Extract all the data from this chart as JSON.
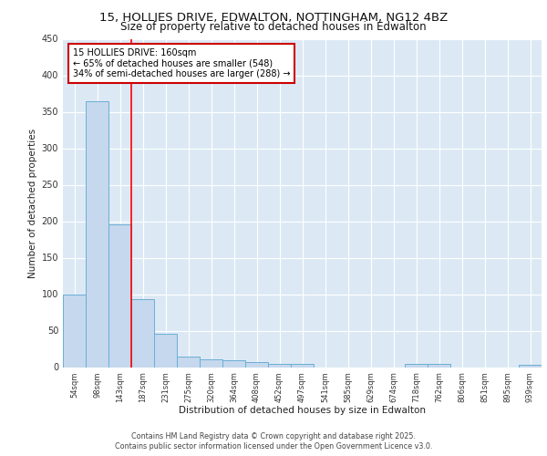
{
  "title1": "15, HOLLIES DRIVE, EDWALTON, NOTTINGHAM, NG12 4BZ",
  "title2": "Size of property relative to detached houses in Edwalton",
  "xlabel": "Distribution of detached houses by size in Edwalton",
  "ylabel": "Number of detached properties",
  "categories": [
    "54sqm",
    "98sqm",
    "143sqm",
    "187sqm",
    "231sqm",
    "275sqm",
    "320sqm",
    "364sqm",
    "408sqm",
    "452sqm",
    "497sqm",
    "541sqm",
    "585sqm",
    "629sqm",
    "674sqm",
    "718sqm",
    "762sqm",
    "806sqm",
    "851sqm",
    "895sqm",
    "939sqm"
  ],
  "values": [
    99,
    365,
    196,
    93,
    46,
    15,
    11,
    10,
    7,
    5,
    5,
    0,
    0,
    0,
    0,
    5,
    4,
    0,
    0,
    0,
    3
  ],
  "bar_color": "#c5d8ed",
  "bar_edge_color": "#6baed6",
  "red_line_x": 2.5,
  "annotation_text": "15 HOLLIES DRIVE: 160sqm\n← 65% of detached houses are smaller (548)\n34% of semi-detached houses are larger (288) →",
  "annotation_box_color": "#ffffff",
  "annotation_box_edge": "#cc0000",
  "plot_bg_color": "#dce9f5",
  "fig_bg_color": "#ffffff",
  "grid_color": "#ffffff",
  "footer1": "Contains HM Land Registry data © Crown copyright and database right 2025.",
  "footer2": "Contains public sector information licensed under the Open Government Licence v3.0.",
  "ylim": [
    0,
    450
  ],
  "yticks": [
    0,
    50,
    100,
    150,
    200,
    250,
    300,
    350,
    400,
    450
  ]
}
